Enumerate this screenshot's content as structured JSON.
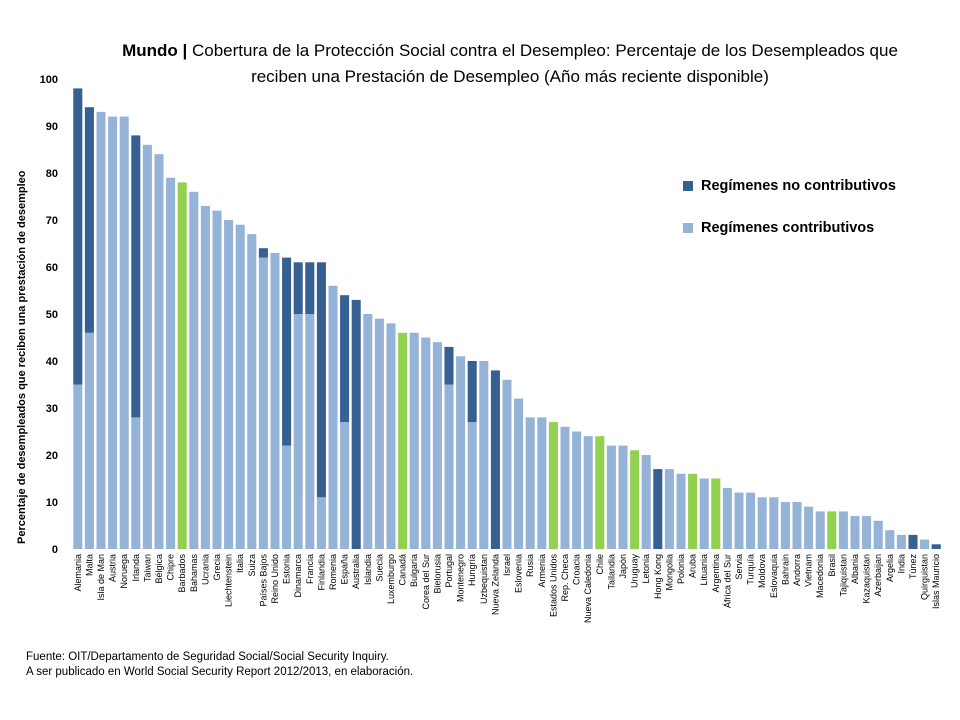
{
  "title": {
    "bold_part": "Mundo |",
    "rest": "Cobertura de la Protección Social contra el Desempleo: Percentaje de los Desempleados que reciben una Prestación de Desempleo (Año más reciente disponible)"
  },
  "colors": {
    "contributive": "#95b3d7",
    "non_contributive": "#366092",
    "highlight": "#92d050"
  },
  "legend": {
    "non_contributive": "Regímenes no contributivos",
    "contributive": "Regímenes contributivos"
  },
  "source": {
    "line1": "Fuente: OIT/Departamento de Seguridad Social/Social Security Inquiry.",
    "line2": "A ser publicado en World Social Security Report 2012/2013,  en elaboración."
  },
  "chart_data": {
    "type": "bar",
    "stacked": true,
    "ylabel": "Percentaje de desempleados que reciben una prestación de desempleo",
    "ylim": [
      0,
      100
    ],
    "yticks": [
      0,
      10,
      20,
      30,
      40,
      50,
      60,
      70,
      80,
      90,
      100
    ],
    "legend_position": "right",
    "categories": [
      "Alemania",
      "Malta",
      "Isla de Man",
      "Austria",
      "Noruega",
      "Irlanda",
      "Taiwan",
      "Bélgica",
      "Chipre",
      "Barbados",
      "Bahamas",
      "Ucrania",
      "Grecia",
      "Liechtenstein",
      "Italia",
      "Suiza",
      "Países Bajos",
      "Reino Unido",
      "Estonia",
      "Dinamarca",
      "Francia",
      "Finlandia",
      "Romenia",
      "España",
      "Australia",
      "Islandia",
      "Suecia",
      "Luxemburgo",
      "Canadá",
      "Bulgaria",
      "Corea del Sur",
      "Bielorusia",
      "Portugal",
      "Montenegro",
      "Hungría",
      "Uzbequistan",
      "Nueva Zelanda",
      "Israel",
      "Eslovenia",
      "Rusia",
      "Armenia",
      "Estados Unidos",
      "Rep. Checa",
      "Croacia",
      "Nueva Caledonia",
      "Chile",
      "Tailandia",
      "Japón",
      "Uruguay",
      "Letonia",
      "Hong Kong",
      "Mongolia",
      "Polonia",
      "Aruba",
      "Lituania",
      "Argentina",
      "África del Sur",
      "Servia",
      "Turquía",
      "Moldova",
      "Eslovaquia",
      "Bahrain",
      "Andorra",
      "Vietnam",
      "Macedonia",
      "Brasil",
      "Tajiquistan",
      "Albania",
      "Kazaquistan",
      "Azerbaijan",
      "Argelia",
      "India",
      "Túnez",
      "Quirguistan",
      "Islas Mauricio"
    ],
    "series": [
      {
        "name": "Regímenes contributivos",
        "values": [
          35,
          46,
          93,
          92,
          92,
          28,
          86,
          84,
          79,
          78,
          76,
          73,
          72,
          70,
          69,
          67,
          62,
          63,
          22,
          50,
          50,
          11,
          56,
          27,
          0,
          50,
          49,
          48,
          46,
          46,
          45,
          44,
          35,
          41,
          27,
          40,
          0,
          36,
          32,
          28,
          28,
          27,
          26,
          25,
          24,
          24,
          22,
          22,
          21,
          20,
          0,
          17,
          16,
          16,
          15,
          15,
          13,
          12,
          12,
          11,
          11,
          10,
          10,
          9,
          8,
          8,
          8,
          7,
          7,
          6,
          4,
          3,
          0,
          2,
          0
        ]
      },
      {
        "name": "Regímenes no contributivos",
        "values": [
          63,
          48,
          0,
          0,
          0,
          60,
          0,
          0,
          0,
          0,
          0,
          0,
          0,
          0,
          0,
          0,
          2,
          0,
          40,
          11,
          11,
          50,
          0,
          27,
          53,
          0,
          0,
          0,
          0,
          0,
          0,
          0,
          8,
          0,
          13,
          0,
          38,
          0,
          0,
          0,
          0,
          0,
          0,
          0,
          0,
          0,
          0,
          0,
          0,
          0,
          17,
          0,
          0,
          0,
          0,
          0,
          0,
          0,
          0,
          0,
          0,
          0,
          0,
          0,
          0,
          0,
          0,
          0,
          0,
          0,
          0,
          0,
          3,
          0,
          1
        ]
      }
    ],
    "highlight_categories": [
      "Barbados",
      "Canadá",
      "Estados Unidos",
      "Chile",
      "Uruguay",
      "Aruba",
      "Argentina",
      "Brasil"
    ]
  }
}
